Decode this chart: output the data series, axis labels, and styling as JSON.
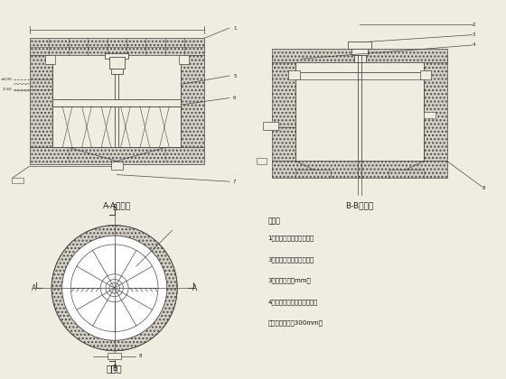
{
  "background_color": "#f0ece0",
  "line_color": "#4a4a4a",
  "thin_lw": 0.5,
  "med_lw": 0.8,
  "title_AA": "A-A剖视图",
  "title_BB": "B-B剖视图",
  "title_plan": "俧视图",
  "notes_title": "说明：",
  "notes": [
    "1、所有穿墙管均设套管。",
    "3、弄管处均用法兰连接。",
    "3、标注单位为mm。",
    "4、构筑物墙体采用钉筋混凝",
    "土、墙体厚度为300mm。"
  ]
}
